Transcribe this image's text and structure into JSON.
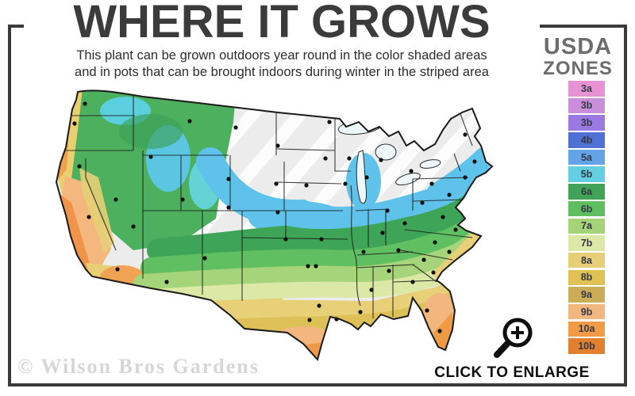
{
  "header": {
    "title": "WHERE IT GROWS",
    "subtitle_line1": "This plant can be grown outdoors year round in the color shaded areas",
    "subtitle_line2": "and in pots that can be brought indoors during winter in the striped area"
  },
  "legend": {
    "title_line1": "USDA",
    "title_line2": "ZONES",
    "zones": [
      {
        "label": "3a",
        "color": "#e793d3"
      },
      {
        "label": "3b",
        "color": "#cb8edb"
      },
      {
        "label": "3b",
        "color": "#9b79e3"
      },
      {
        "label": "4b",
        "color": "#4e71d3"
      },
      {
        "label": "5a",
        "color": "#64a4e6"
      },
      {
        "label": "5b",
        "color": "#64cfe0"
      },
      {
        "label": "6a",
        "color": "#41a357"
      },
      {
        "label": "6b",
        "color": "#5fbe5f"
      },
      {
        "label": "7a",
        "color": "#a5d378"
      },
      {
        "label": "7b",
        "color": "#dde7a6"
      },
      {
        "label": "8a",
        "color": "#e7cf78"
      },
      {
        "label": "8b",
        "color": "#dfc253"
      },
      {
        "label": "9a",
        "color": "#ccad57"
      },
      {
        "label": "9b",
        "color": "#f2b67f"
      },
      {
        "label": "10a",
        "color": "#f19b46"
      },
      {
        "label": "10b",
        "color": "#e2802f"
      }
    ]
  },
  "footer": {
    "watermark": "© Wilson Bros Gardens",
    "enlarge_label": "CLICK TO ENLARGE"
  },
  "colors": {
    "frame": "#3a3a3a",
    "title_text": "#3b3b3b",
    "legend_title_text": "#6d6d6d"
  }
}
